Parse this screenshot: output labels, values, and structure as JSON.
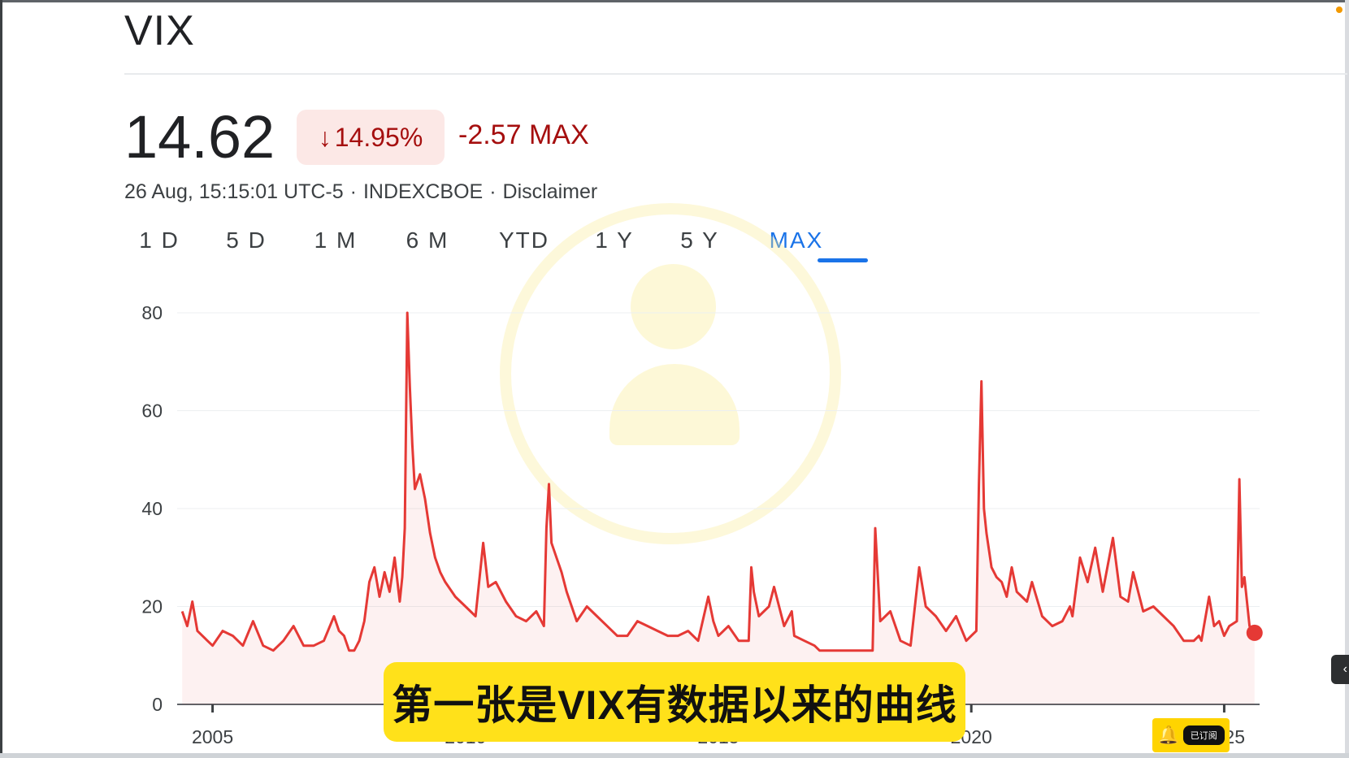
{
  "header": {
    "ticker": "VIX",
    "price": "14.62",
    "change_arrow": "↓",
    "change_percent": "14.95%",
    "change_abs": "-2.57 MAX",
    "timestamp": "26 Aug, 15:15:01 UTC-5",
    "separator": "·",
    "exchange": "INDEXCBOE",
    "disclaimer": "Disclaimer"
  },
  "ranges": {
    "items": [
      "1 D",
      "5 D",
      "1 M",
      "6 M",
      "YTD",
      "1 Y",
      "5 Y",
      "MAX"
    ],
    "selected": "MAX"
  },
  "colors": {
    "negative": "#a50e0e",
    "negative_bg": "#fce8e6",
    "line": "#e53935",
    "accent": "#1a73e8",
    "caption_bg": "#ffe11a"
  },
  "caption": "第一张是VIX有数据以来的曲线",
  "subscribe_badge": {
    "icon": "bell-icon",
    "label": "已订阅"
  },
  "chart_data": {
    "type": "line",
    "series": [
      {
        "x": [
          2004.4,
          2004.5,
          2004.6,
          2004.7,
          2004.9,
          2005.0,
          2005.2,
          2005.4,
          2005.6,
          2005.8,
          2006.0,
          2006.2,
          2006.4,
          2006.6,
          2006.8,
          2007.0,
          2007.2,
          2007.4,
          2007.5,
          2007.6,
          2007.7,
          2007.8,
          2007.9,
          2008.0,
          2008.1,
          2008.2,
          2008.3,
          2008.4,
          2008.5,
          2008.6,
          2008.7,
          2008.75,
          2008.8,
          2008.85,
          2008.9,
          2008.95,
          2009.0,
          2009.1,
          2009.2,
          2009.3,
          2009.4,
          2009.5,
          2009.6,
          2009.8,
          2010.0,
          2010.2,
          2010.35,
          2010.45,
          2010.6,
          2010.8,
          2011.0,
          2011.2,
          2011.4,
          2011.55,
          2011.6,
          2011.65,
          2011.7,
          2011.8,
          2011.9,
          2012.0,
          2012.2,
          2012.4,
          2012.6,
          2012.8,
          2013.0,
          2013.2,
          2013.4,
          2013.6,
          2013.8,
          2014.0,
          2014.2,
          2014.4,
          2014.6,
          2014.8,
          2014.9,
          2015.0,
          2015.2,
          2015.4,
          2015.6,
          2015.65,
          2015.7,
          2015.8,
          2016.0,
          2016.1,
          2016.3,
          2016.45,
          2016.5,
          2016.7,
          2016.9,
          2017.0,
          2017.3,
          2017.6,
          2017.9,
          2018.05,
          2018.1,
          2018.2,
          2018.4,
          2018.6,
          2018.8,
          2018.97,
          2019.1,
          2019.3,
          2019.5,
          2019.7,
          2019.9,
          2020.0,
          2020.1,
          2020.15,
          2020.2,
          2020.25,
          2020.3,
          2020.4,
          2020.5,
          2020.6,
          2020.7,
          2020.8,
          2020.9,
          2021.0,
          2021.1,
          2021.2,
          2021.4,
          2021.6,
          2021.8,
          2021.95,
          2022.0,
          2022.15,
          2022.3,
          2022.45,
          2022.6,
          2022.8,
          2022.95,
          2023.1,
          2023.2,
          2023.4,
          2023.6,
          2023.8,
          2024.0,
          2024.2,
          2024.4,
          2024.5,
          2024.55,
          2024.6,
          2024.7,
          2024.8,
          2024.9,
          2025.0,
          2025.1,
          2025.25,
          2025.3,
          2025.35,
          2025.4,
          2025.5,
          2025.6
        ],
        "y": [
          19,
          16,
          21,
          15,
          13,
          12,
          15,
          14,
          12,
          17,
          12,
          11,
          13,
          16,
          12,
          12,
          13,
          18,
          15,
          14,
          11,
          11,
          13,
          17,
          25,
          28,
          22,
          27,
          23,
          30,
          21,
          26,
          36,
          80,
          65,
          53,
          44,
          47,
          42,
          35,
          30,
          27,
          25,
          22,
          20,
          18,
          33,
          24,
          25,
          21,
          18,
          17,
          19,
          16,
          36,
          45,
          33,
          30,
          27,
          23,
          17,
          20,
          18,
          16,
          14,
          14,
          17,
          16,
          15,
          14,
          14,
          15,
          13,
          22,
          17,
          14,
          16,
          13,
          13,
          28,
          23,
          18,
          20,
          24,
          16,
          19,
          14,
          13,
          12,
          11,
          11,
          11,
          11,
          11,
          36,
          17,
          19,
          13,
          12,
          28,
          20,
          18,
          15,
          18,
          13,
          14,
          15,
          45,
          66,
          40,
          35,
          28,
          26,
          25,
          22,
          28,
          23,
          22,
          21,
          25,
          18,
          16,
          17,
          20,
          18,
          30,
          25,
          32,
          23,
          34,
          22,
          21,
          27,
          19,
          20,
          18,
          16,
          13,
          13,
          14,
          13,
          16,
          22,
          16,
          17,
          14,
          16,
          17,
          46,
          24,
          26,
          16,
          14.62
        ]
      }
    ],
    "ylim": [
      0,
      80
    ],
    "yticks": [
      0,
      20,
      40,
      60,
      80
    ],
    "xlim": [
      2004.3,
      2025.7
    ],
    "xtick_values": [
      2005,
      2010,
      2015,
      2020,
      2025
    ],
    "xtick_labels": [
      "2005",
      "2010",
      "2015",
      "2020",
      "2025"
    ],
    "title": "",
    "xlabel": "",
    "ylabel": "",
    "grid": "horizontal"
  }
}
